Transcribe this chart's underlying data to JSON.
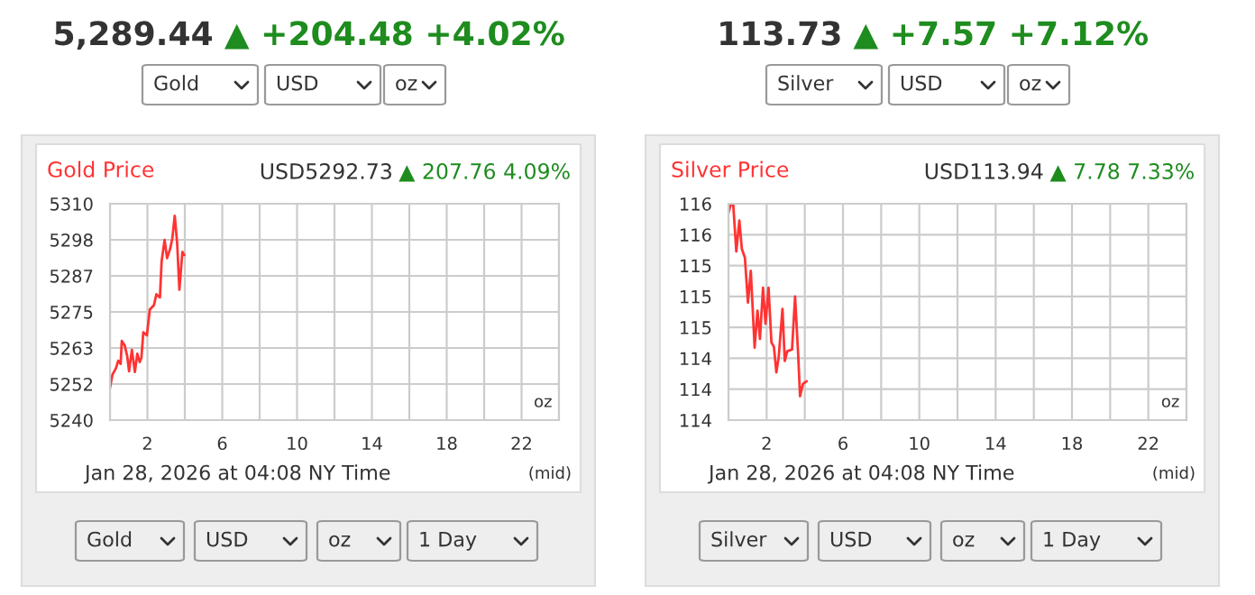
{
  "chart_data": [
    {
      "type": "line",
      "title": "Gold Price",
      "subtitle": "USD5292.73 ▲ 207.76 4.09%",
      "annotations": [
        "5,289.44 ▲ +204.48 +4.02%",
        "Gold",
        "USD",
        "oz",
        "Jan 28, 2026 at 04:08 NY Time",
        "(mid)",
        "oz",
        "Gold",
        "USD",
        "oz",
        "1 Day"
      ],
      "x": [
        0,
        0.13,
        0.32,
        0.44,
        0.57,
        0.63,
        0.79,
        0.92,
        1.02,
        1.17,
        1.33,
        1.46,
        1.59,
        1.68,
        1.78,
        1.97,
        2.13,
        2.35,
        2.48,
        2.67,
        2.76,
        2.92,
        3.05,
        3.21,
        3.33,
        3.46,
        3.59,
        3.71,
        3.87,
        3.97
      ],
      "series": [
        {
          "color": "#ff3333",
          "values": [
            5250.4,
            5254.7,
            5256.8,
            5259.2,
            5258.2,
            5265.6,
            5264.1,
            5260.7,
            5255.8,
            5262.7,
            5255.6,
            5261.5,
            5258.8,
            5260.1,
            5268.4,
            5267.4,
            5275.8,
            5277.2,
            5280.7,
            5279.7,
            5291.4,
            5298.3,
            5292.4,
            5295.3,
            5298.7,
            5306.1,
            5297.3,
            5282.2,
            5294.4,
            5293.4
          ]
        }
      ],
      "xlim": [
        0,
        24
      ],
      "xticks": [
        {
          "value": 0,
          "label": null
        },
        2,
        {
          "value": 4,
          "label": null
        },
        6,
        {
          "value": 8,
          "label": null
        },
        10,
        {
          "value": 12,
          "label": null
        },
        14,
        {
          "value": 16,
          "label": null
        },
        18,
        {
          "value": 20,
          "label": null
        },
        22,
        {
          "value": 24,
          "label": null
        }
      ],
      "ylim": [
        5240,
        5310
      ],
      "yticks": [
        5240,
        {
          "value": 5251.67,
          "label": "5252"
        },
        {
          "value": 5263.33,
          "label": "5263"
        },
        5275,
        {
          "value": 5286.67,
          "label": "5287"
        },
        {
          "value": 5298.33,
          "label": "5298"
        },
        5310
      ],
      "grid": true,
      "legend": false,
      "marker": "none",
      "line_style": "solid"
    },
    {
      "type": "line",
      "title": "Silver Price",
      "subtitle": "USD113.94 ▲ 7.78 7.33%",
      "annotations": [
        "113.73 ▲ +7.57 +7.12%",
        "Silver",
        "USD",
        "oz",
        "Jan 28, 2026 at 04:08 NY Time",
        "(mid)",
        "oz",
        "Silver",
        "USD",
        "oz",
        "1 Day"
      ],
      "x": [
        0,
        0.13,
        0.25,
        0.41,
        0.57,
        0.7,
        0.86,
        1.02,
        1.17,
        1.37,
        1.52,
        1.65,
        1.81,
        1.94,
        2.1,
        2.25,
        2.38,
        2.51,
        2.63,
        2.83,
        2.95,
        3.08,
        3.33,
        3.49,
        3.65,
        3.75,
        3.9,
        4.1
      ],
      "series": [
        {
          "color": "#ff3333",
          "values": [
            115.95,
            116.05,
            116.04,
            115.51,
            115.86,
            115.54,
            115.44,
            114.93,
            115.29,
            114.42,
            114.84,
            114.52,
            115.1,
            114.69,
            115.1,
            114.48,
            114.43,
            114.14,
            114.31,
            114.86,
            114.27,
            114.38,
            114.4,
            115.0,
            114.35,
            113.87,
            114.01,
            114.04
          ]
        }
      ],
      "xlim": [
        0,
        24
      ],
      "xticks": [
        {
          "value": 0,
          "label": null
        },
        2,
        {
          "value": 4,
          "label": null
        },
        6,
        {
          "value": 8,
          "label": null
        },
        10,
        {
          "value": 12,
          "label": null
        },
        14,
        {
          "value": 16,
          "label": null
        },
        18,
        {
          "value": 20,
          "label": null
        },
        22,
        {
          "value": 24,
          "label": null
        }
      ],
      "ylim": [
        113.6,
        116.05
      ],
      "yticks": [
        {
          "value": 113.6,
          "label": "114"
        },
        {
          "value": 113.95,
          "label": "114"
        },
        {
          "value": 114.3,
          "label": "114"
        },
        {
          "value": 114.65,
          "label": "115"
        },
        {
          "value": 115.0,
          "label": "115"
        },
        {
          "value": 115.35,
          "label": "115"
        },
        {
          "value": 115.7,
          "label": "116"
        },
        {
          "value": 116.05,
          "label": "116"
        }
      ],
      "grid": true,
      "legend": false,
      "marker": "none",
      "line_style": "solid"
    }
  ]
}
